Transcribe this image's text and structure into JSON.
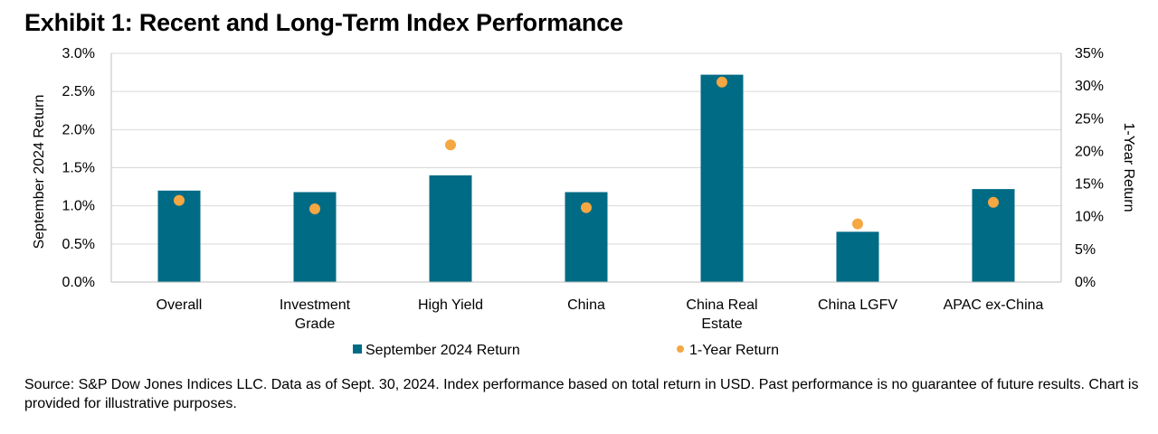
{
  "title": "Exhibit 1: Recent and Long-Term Index Performance",
  "source_note": "Source: S&P Dow Jones Indices LLC.  Data as of Sept. 30, 2024.  Index performance based on total return in USD.  Past performance is no guarantee of future results.  Chart is provided for illustrative purposes.",
  "chart_data": {
    "type": "bar",
    "categories": [
      [
        "Overall"
      ],
      [
        "Investment",
        "Grade"
      ],
      [
        "High Yield"
      ],
      [
        "China"
      ],
      [
        "China Real",
        "Estate"
      ],
      [
        "China LGFV"
      ],
      [
        "APAC ex-China"
      ]
    ],
    "series": [
      {
        "name": "September 2024 Return",
        "type": "bar",
        "axis": "left",
        "color": "#006B85",
        "values": [
          1.2,
          1.18,
          1.4,
          1.18,
          2.72,
          0.66,
          1.22
        ]
      },
      {
        "name": "1-Year Return",
        "type": "scatter",
        "axis": "right",
        "color": "#F4A742",
        "values": [
          12.5,
          11.2,
          21.0,
          11.4,
          30.6,
          8.9,
          12.2
        ]
      }
    ],
    "ylabel": "September 2024 Return",
    "ylabel_right": "1-Year Return",
    "ylim": [
      0,
      3.0
    ],
    "ylim_right": [
      0,
      35
    ],
    "yticks": [
      "0.0%",
      "0.5%",
      "1.0%",
      "1.5%",
      "2.0%",
      "2.5%",
      "3.0%"
    ],
    "yticks_right": [
      "0%",
      "5%",
      "10%",
      "15%",
      "20%",
      "25%",
      "30%",
      "35%"
    ],
    "grid": true,
    "legend_position": "bottom"
  }
}
